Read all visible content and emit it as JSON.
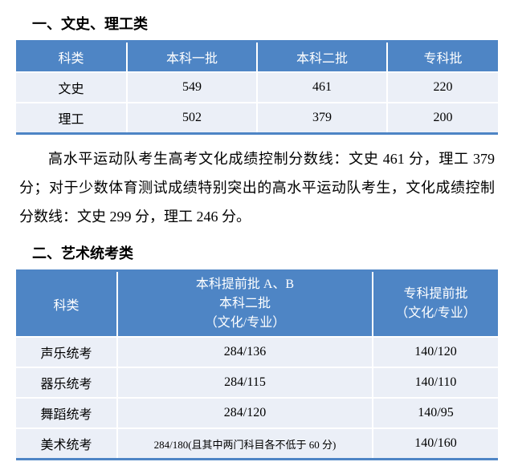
{
  "section1": {
    "title": "一、文史、理工类",
    "columns": [
      "科类",
      "本科一批",
      "本科二批",
      "专科批"
    ],
    "rows": [
      [
        "文史",
        "549",
        "461",
        "220"
      ],
      [
        "理工",
        "502",
        "379",
        "200"
      ]
    ],
    "col_widths": [
      "23%",
      "27%",
      "27%",
      "23%"
    ]
  },
  "paragraph": "高水平运动队考生高考文化成绩控制分数线：文史 461 分，理工 379 分；对于少数体育测试成绩特别突出的高水平运动队考生，文化成绩控制分数线：文史 299 分，理工 246 分。",
  "section2": {
    "title": "二、艺术统考类",
    "columns": [
      "科类",
      "本科提前批 A、B\n本科二批\n（文化/专业）",
      "专科提前批\n（文化/专业）"
    ],
    "rows": [
      [
        "声乐统考",
        "284/136",
        "140/120"
      ],
      [
        "器乐统考",
        "284/115",
        "140/110"
      ],
      [
        "舞蹈统考",
        "284/120",
        "140/95"
      ],
      [
        "美术统考",
        "284/180(且其中两门科目各不低于 60 分)",
        "140/160"
      ]
    ],
    "col_widths": [
      "21%",
      "53%",
      "26%"
    ]
  }
}
